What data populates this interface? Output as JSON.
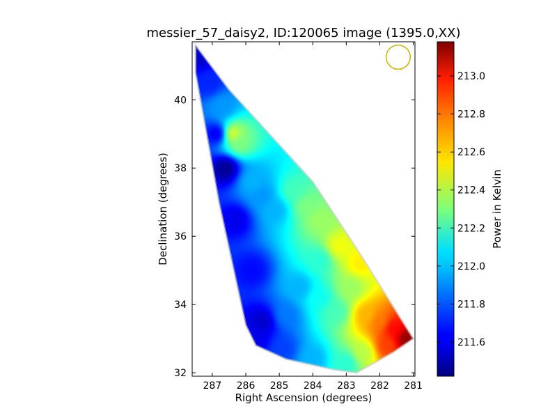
{
  "chart_data": {
    "type": "heatmap",
    "title": "messier_57_daisy2, ID:120065 image (1395.0,XX)",
    "xlabel": "Right Ascension (degrees)",
    "ylabel": "Declination (degrees)",
    "xlim": [
      287.6,
      280.95
    ],
    "ylim": [
      31.9,
      41.7
    ],
    "x_ticks": [
      287,
      286,
      285,
      284,
      283,
      282,
      281
    ],
    "y_ticks": [
      32,
      34,
      36,
      38,
      40
    ],
    "x_tick_labels": [
      "287",
      "286",
      "285",
      "284",
      "283",
      "282",
      "281"
    ],
    "y_tick_labels": [
      "32",
      "34",
      "36",
      "38",
      "40"
    ],
    "grid": false,
    "colormap": "jet",
    "colorbar": {
      "label": "Power in Kelvin",
      "range": [
        211.42,
        213.18
      ],
      "ticks": [
        211.6,
        211.8,
        212.0,
        212.2,
        212.4,
        212.6,
        212.8,
        213.0
      ],
      "tick_labels": [
        "211.6",
        "211.8",
        "212.0",
        "212.2",
        "212.4",
        "212.6",
        "212.8",
        "213.0"
      ]
    },
    "coverage_polygon": [
      [
        287.5,
        41.6
      ],
      [
        286.5,
        40.3
      ],
      [
        284.0,
        37.6
      ],
      [
        282.6,
        35.5
      ],
      [
        281.0,
        33.0
      ],
      [
        281.6,
        32.6
      ],
      [
        282.7,
        32.0
      ],
      [
        283.4,
        32.1
      ],
      [
        284.8,
        32.4
      ],
      [
        285.7,
        32.8
      ],
      [
        286.0,
        33.4
      ],
      [
        286.8,
        37.0
      ],
      [
        287.5,
        40.8
      ]
    ],
    "beam_marker": {
      "ra": 281.45,
      "dec": 41.25,
      "radius_deg": 0.36,
      "color": "#c8b400"
    },
    "field_samples": [
      {
        "ra": 287.4,
        "dec": 41.3,
        "value": 211.55
      },
      {
        "ra": 287.1,
        "dec": 40.5,
        "value": 211.7
      },
      {
        "ra": 286.7,
        "dec": 39.8,
        "value": 211.9
      },
      {
        "ra": 286.4,
        "dec": 39.0,
        "value": 212.45
      },
      {
        "ra": 286.2,
        "dec": 38.7,
        "value": 212.3
      },
      {
        "ra": 286.85,
        "dec": 39.0,
        "value": 211.6
      },
      {
        "ra": 286.6,
        "dec": 38.0,
        "value": 211.45
      },
      {
        "ra": 286.3,
        "dec": 36.5,
        "value": 211.6
      },
      {
        "ra": 285.8,
        "dec": 37.6,
        "value": 211.95
      },
      {
        "ra": 285.5,
        "dec": 37.2,
        "value": 211.9
      },
      {
        "ra": 285.1,
        "dec": 36.8,
        "value": 211.95
      },
      {
        "ra": 284.6,
        "dec": 37.3,
        "value": 212.2
      },
      {
        "ra": 284.2,
        "dec": 36.9,
        "value": 212.3
      },
      {
        "ra": 283.8,
        "dec": 36.5,
        "value": 212.35
      },
      {
        "ra": 283.2,
        "dec": 35.7,
        "value": 212.5
      },
      {
        "ra": 282.6,
        "dec": 35.2,
        "value": 212.55
      },
      {
        "ra": 285.8,
        "dec": 35.0,
        "value": 211.65
      },
      {
        "ra": 285.5,
        "dec": 33.5,
        "value": 211.55
      },
      {
        "ra": 285.7,
        "dec": 33.0,
        "value": 211.6
      },
      {
        "ra": 284.8,
        "dec": 33.7,
        "value": 211.85
      },
      {
        "ra": 284.4,
        "dec": 34.5,
        "value": 211.95
      },
      {
        "ra": 283.8,
        "dec": 34.2,
        "value": 212.1
      },
      {
        "ra": 283.3,
        "dec": 33.8,
        "value": 212.2
      },
      {
        "ra": 282.9,
        "dec": 34.5,
        "value": 212.35
      },
      {
        "ra": 282.4,
        "dec": 33.7,
        "value": 212.65
      },
      {
        "ra": 282.0,
        "dec": 33.5,
        "value": 212.75
      },
      {
        "ra": 281.6,
        "dec": 33.3,
        "value": 212.95
      },
      {
        "ra": 281.2,
        "dec": 33.0,
        "value": 213.15
      },
      {
        "ra": 281.8,
        "dec": 32.8,
        "value": 212.85
      },
      {
        "ra": 282.5,
        "dec": 32.6,
        "value": 212.4
      },
      {
        "ra": 283.0,
        "dec": 32.3,
        "value": 212.15
      },
      {
        "ra": 284.0,
        "dec": 32.4,
        "value": 211.95
      },
      {
        "ra": 284.9,
        "dec": 32.7,
        "value": 211.75
      },
      {
        "ra": 283.8,
        "dec": 35.3,
        "value": 212.15
      }
    ]
  }
}
